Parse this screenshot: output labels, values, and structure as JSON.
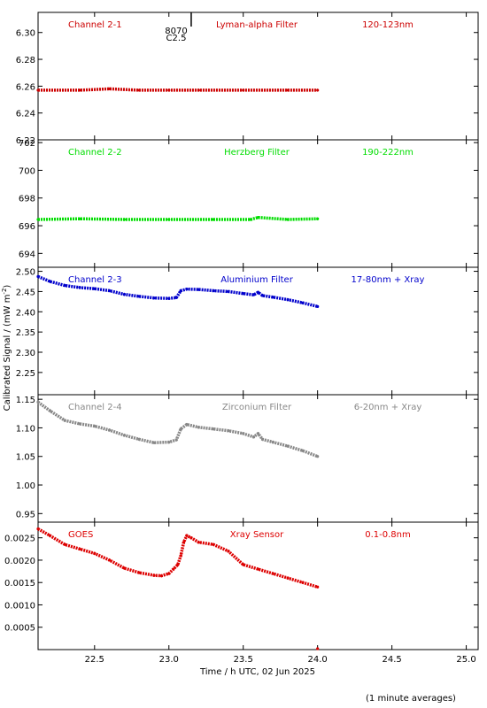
{
  "xlabel": "Time / h UTC, 02 Jun 2025",
  "ylabel": "Calibrated Signal / (mW m",
  "ylabel_sup": "-2",
  "ylabel_close": ")",
  "footnote": "(1 minute averages)",
  "marker_labels": [
    "8070",
    "C2.5"
  ],
  "chart_data": [
    {
      "type": "scatter",
      "channel": "Channel 2-1",
      "filter": "Lyman-alpha Filter",
      "band": "120-123nm",
      "color": "#cc0000",
      "xlim": [
        22.12,
        25.08
      ],
      "ylim": [
        6.22,
        6.315
      ],
      "yticks": [
        6.22,
        6.24,
        6.26,
        6.28,
        6.3
      ],
      "ytick_labels": [
        "6.22",
        "6.24",
        "6.26",
        "6.28",
        "6.30"
      ],
      "series": [
        {
          "x": [
            22.12,
            22.4,
            22.6,
            22.8,
            23.0,
            23.2,
            23.5,
            23.8,
            24.0
          ],
          "y": [
            6.257,
            6.257,
            6.258,
            6.257,
            6.257,
            6.257,
            6.257,
            6.257,
            6.257
          ]
        }
      ]
    },
    {
      "type": "scatter",
      "channel": "Channel 2-2",
      "filter": "Herzberg Filter",
      "band": "190-222nm",
      "color": "#00dd00",
      "xlim": [
        22.12,
        25.08
      ],
      "ylim": [
        693,
        702.2
      ],
      "yticks": [
        694,
        696,
        698,
        700,
        702
      ],
      "ytick_labels": [
        "694",
        "696",
        "698",
        "700",
        "702"
      ],
      "series": [
        {
          "x": [
            22.12,
            22.4,
            22.7,
            23.0,
            23.3,
            23.55,
            23.6,
            23.8,
            24.0
          ],
          "y": [
            696.45,
            696.5,
            696.45,
            696.45,
            696.45,
            696.45,
            696.6,
            696.45,
            696.5
          ]
        }
      ]
    },
    {
      "type": "scatter",
      "channel": "Channel 2-3",
      "filter": "Aluminium Filter",
      "band": "17-80nm + Xray",
      "color": "#0000cc",
      "xlim": [
        22.12,
        25.08
      ],
      "ylim": [
        2.195,
        2.51
      ],
      "yticks": [
        2.25,
        2.3,
        2.35,
        2.4,
        2.45,
        2.5
      ],
      "ytick_labels": [
        "2.25",
        "2.30",
        "2.35",
        "2.40",
        "2.45",
        "2.50"
      ],
      "series": [
        {
          "x": [
            22.12,
            22.2,
            22.3,
            22.4,
            22.5,
            22.6,
            22.7,
            22.8,
            22.9,
            23.0,
            23.05,
            23.08,
            23.12,
            23.2,
            23.3,
            23.4,
            23.5,
            23.57,
            23.6,
            23.63,
            23.7,
            23.8,
            23.9,
            24.0
          ],
          "y": [
            2.487,
            2.475,
            2.465,
            2.46,
            2.457,
            2.452,
            2.443,
            2.438,
            2.434,
            2.433,
            2.435,
            2.452,
            2.456,
            2.455,
            2.452,
            2.45,
            2.445,
            2.442,
            2.448,
            2.44,
            2.436,
            2.43,
            2.422,
            2.413
          ]
        }
      ]
    },
    {
      "type": "scatter",
      "channel": "Channel 2-4",
      "filter": "Zirconium Filter",
      "band": "6-20nm + Xray",
      "color": "#888888",
      "xlim": [
        22.12,
        25.08
      ],
      "ylim": [
        0.935,
        1.158
      ],
      "yticks": [
        0.95,
        1.0,
        1.05,
        1.1,
        1.15
      ],
      "ytick_labels": [
        "0.95",
        "1.00",
        "1.05",
        "1.10",
        "1.15"
      ],
      "series": [
        {
          "x": [
            22.12,
            22.2,
            22.3,
            22.4,
            22.5,
            22.6,
            22.7,
            22.8,
            22.9,
            23.0,
            23.05,
            23.08,
            23.12,
            23.2,
            23.3,
            23.4,
            23.5,
            23.57,
            23.6,
            23.63,
            23.7,
            23.8,
            23.9,
            24.0
          ],
          "y": [
            1.145,
            1.13,
            1.113,
            1.107,
            1.103,
            1.096,
            1.087,
            1.08,
            1.074,
            1.075,
            1.079,
            1.098,
            1.106,
            1.101,
            1.098,
            1.095,
            1.09,
            1.084,
            1.09,
            1.08,
            1.075,
            1.068,
            1.06,
            1.05
          ]
        }
      ]
    },
    {
      "type": "scatter",
      "channel": "GOES",
      "filter": "Xray Sensor",
      "band": "0.1-0.8nm",
      "color": "#dd0000",
      "xlim": [
        22.12,
        25.08
      ],
      "ylim": [
        0.0,
        0.00285
      ],
      "yticks": [
        0.0005,
        0.001,
        0.0015,
        0.002,
        0.0025
      ],
      "ytick_labels": [
        "0.0005",
        "0.0010",
        "0.0015",
        "0.0020",
        "0.0025"
      ],
      "series": [
        {
          "x": [
            22.12,
            22.2,
            22.3,
            22.4,
            22.5,
            22.6,
            22.7,
            22.8,
            22.9,
            22.95,
            23.0,
            23.03,
            23.06,
            23.08,
            23.1,
            23.12,
            23.15,
            23.2,
            23.3,
            23.4,
            23.5,
            23.6,
            23.7,
            23.8,
            23.9,
            24.0
          ],
          "y": [
            0.0027,
            0.00255,
            0.00235,
            0.00225,
            0.00215,
            0.002,
            0.00182,
            0.00172,
            0.00166,
            0.00165,
            0.0017,
            0.0018,
            0.0019,
            0.0021,
            0.0024,
            0.00255,
            0.0025,
            0.0024,
            0.00235,
            0.0022,
            0.0019,
            0.0018,
            0.0017,
            0.0016,
            0.0015,
            0.0014
          ]
        }
      ]
    }
  ],
  "x_axis": {
    "xlim": [
      22.12,
      25.08
    ],
    "ticks": [
      22.5,
      23.0,
      23.5,
      24.0,
      24.5,
      25.0
    ],
    "tick_labels": [
      "22.5",
      "23.0",
      "23.5",
      "24.0",
      "24.5",
      "25.0"
    ]
  },
  "event_marker_x": 23.15
}
